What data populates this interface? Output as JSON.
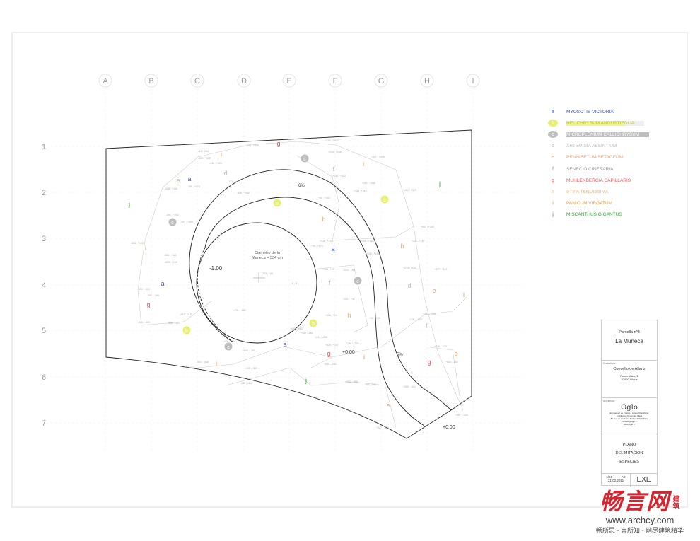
{
  "grid": {
    "columns": [
      "A",
      "B",
      "C",
      "D",
      "E",
      "F",
      "G",
      "H",
      "I"
    ],
    "rows": [
      "1",
      "2",
      "3",
      "4",
      "5",
      "6",
      "7"
    ]
  },
  "plan": {
    "slope_top": "6%",
    "slope_tail": "5%",
    "level_center": "-1.00",
    "level_mid": "+0.00",
    "level_end": "+0.00",
    "diameter_line1": "Diametro de la",
    "diameter_line2": "Muneca = 534 cm",
    "center_coord": "-123 ; +40",
    "origin_coord": "0 ; 0",
    "coords": [
      "-305 ; +512",
      "-346 ; +502",
      "-195 ; +526",
      "-369 ; +473",
      "-172 ; +477",
      "-328 ; +440",
      "-548 ; +430",
      "-591 ; +252",
      "-407 ; +263",
      "-593 ; +195",
      "-503 ; +106",
      "-583 ; +116",
      "-650 ; -109",
      "-585 ; -109",
      "-690 ; -106",
      "-463 ; -115",
      "-536 ; -162",
      "-175 ; -294",
      "-501 ; -348",
      "-472 ; -383",
      "-192 ; -393",
      "-343 ; -460",
      "+192 ; +542",
      "+215 ; +188",
      "+234 ; +423",
      "+281 ; +446",
      "+224 ; +416",
      "+447 ; +405",
      "+481 ; +329",
      "+84 ; +302",
      "+136 ; +108",
      "+99 ; +175",
      "+300 ; +168",
      "+230 ; +139",
      "+432 ; +187",
      "+503 ; +240",
      "+134 ; +77",
      "+223 ; +80",
      "+473 ; +102",
      "+577 ; +601",
      "+221 ; +32",
      "+636 ; +14",
      "+731 ; -104",
      "+95 ; -139",
      "+333 ; -135",
      "+625 ; +147",
      "+782 ; +121",
      "+745 ; -176",
      "+534 ; -252",
      "+630 ; -262",
      "+808 ; -301",
      "+149 ; -261",
      "+244 ; -292",
      "+383 ; -305",
      "+58 ; -331",
      "+339 ; -412",
      "+377 ; -420",
      "+487 ; -430",
      "+431 ; -663",
      "+751 ; -582",
      "-41 ; -264"
    ]
  },
  "legend": [
    {
      "key": "a",
      "name": "MYOSOTIS VICTORIA",
      "color": "#3a55c8"
    },
    {
      "key": "b",
      "name": "HELICHRYSUM ANGUSTIFOLIA",
      "color": "#e6ef70"
    },
    {
      "key": "c",
      "name": "MICROPLENIUM CALLICHRYSUM",
      "color": "#bdbdbd"
    },
    {
      "key": "d",
      "name": "ARTEMISIA ABSINTIUM",
      "color": "#bbbbbb"
    },
    {
      "key": "e",
      "name": "PENNISETUM SETACEUM",
      "color": "#f0a070"
    },
    {
      "key": "f",
      "name": "SENECIO CINERARIA",
      "color": "#999999"
    },
    {
      "key": "g",
      "name": "MUHLENBERGIA CAPILLARIS",
      "color": "#e45a5a"
    },
    {
      "key": "h",
      "name": "STIPA TENUISSIMA",
      "color": "#e8b080"
    },
    {
      "key": "i",
      "name": "PANICUM VIRGATUM",
      "color": "#e89a40"
    },
    {
      "key": "j",
      "name": "MISCANTHUS GIGANTUS",
      "color": "#2fa32f"
    }
  ],
  "title_block": {
    "parcel": "Parcella nº3",
    "name": "La Muñeca",
    "client_label": "Contratista:",
    "client": "Concello de Allariz",
    "client_addr1": "Praza Maior, 1",
    "client_addr2": "32660 Allariz",
    "architect_label": "Arquitecto:",
    "architect_logo": "Oglo",
    "architect_line1": "Emmanuel de Franco - Arnaud Dambrine",
    "architect_line2": "Architectes Diplomés d'Etat",
    "architect_line3": "80, rue du capitaine Ferber 75020 Paris",
    "architect_line4": "contact@oglo.fr",
    "architect_line5": "www.oglo.fr",
    "plan_title1": "PLANO",
    "sep1": "-",
    "plan_title2": "DELIMITACION",
    "sep2": "-",
    "plan_title3": "ESPECIES",
    "scale": "1/50",
    "format": "A2",
    "date": "21.02.2011",
    "phase": "EXE"
  },
  "watermark": {
    "logo": "畅言网",
    "logo_side": "建筑",
    "url": "www.archcy.com",
    "slogan": "畅所思 · 言所知 · 网尽建筑精华"
  }
}
